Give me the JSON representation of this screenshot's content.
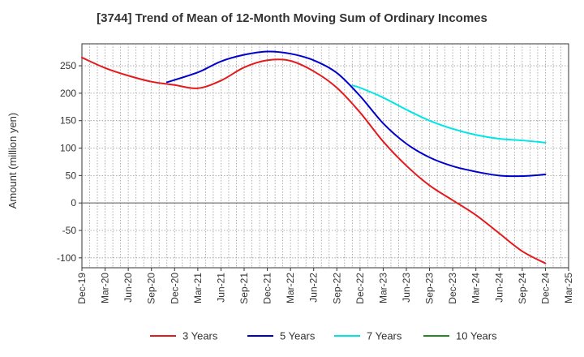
{
  "chart_data": {
    "type": "line",
    "title": "[3744]  Trend of Mean of 12-Month Moving Sum of Ordinary Incomes",
    "xlabel": "",
    "ylabel": "Amount (million yen)",
    "ylim": [
      -118,
      290
    ],
    "yticks": [
      250,
      200,
      150,
      100,
      50,
      0,
      -50,
      -100
    ],
    "xticks": [
      "Dec-19",
      "Mar-20",
      "Jun-20",
      "Sep-20",
      "Dec-20",
      "Mar-21",
      "Jun-21",
      "Sep-21",
      "Dec-21",
      "Mar-22",
      "Jun-22",
      "Sep-22",
      "Dec-22",
      "Mar-23",
      "Jun-23",
      "Sep-23",
      "Dec-23",
      "Mar-24",
      "Jun-24",
      "Sep-24",
      "Dec-24",
      "Mar-25"
    ],
    "grid": true,
    "legend_position": "bottom",
    "series": [
      {
        "name": "3 Years",
        "color": "#e41a1c",
        "points": [
          [
            0,
            265
          ],
          [
            1,
            246
          ],
          [
            2,
            232
          ],
          [
            3,
            221
          ],
          [
            4,
            215
          ],
          [
            5,
            209
          ],
          [
            6,
            223
          ],
          [
            7,
            247
          ],
          [
            8,
            260
          ],
          [
            9,
            259
          ],
          [
            10,
            240
          ],
          [
            11,
            210
          ],
          [
            12,
            165
          ],
          [
            13,
            112
          ],
          [
            14,
            68
          ],
          [
            15,
            32
          ],
          [
            16,
            5
          ],
          [
            17,
            -22
          ],
          [
            18,
            -55
          ],
          [
            19,
            -88
          ],
          [
            20,
            -110
          ]
        ]
      },
      {
        "name": "5 Years",
        "color": "#0000cc",
        "points": [
          [
            3.67,
            220
          ],
          [
            5,
            238
          ],
          [
            6,
            258
          ],
          [
            7,
            270
          ],
          [
            8,
            276
          ],
          [
            9,
            272
          ],
          [
            10,
            260
          ],
          [
            11,
            237
          ],
          [
            12,
            195
          ],
          [
            13,
            145
          ],
          [
            14,
            108
          ],
          [
            15,
            83
          ],
          [
            16,
            67
          ],
          [
            17,
            57
          ],
          [
            18,
            50
          ],
          [
            19,
            49
          ],
          [
            20,
            52
          ]
        ]
      },
      {
        "name": "7 Years",
        "color": "#00e5e5",
        "points": [
          [
            11.67,
            214
          ],
          [
            12,
            210
          ],
          [
            13,
            192
          ],
          [
            14,
            170
          ],
          [
            15,
            150
          ],
          [
            16,
            135
          ],
          [
            17,
            124
          ],
          [
            18,
            117
          ],
          [
            19,
            114
          ],
          [
            20,
            110
          ]
        ]
      },
      {
        "name": "10 Years",
        "color": "#228b22",
        "points": []
      }
    ]
  }
}
